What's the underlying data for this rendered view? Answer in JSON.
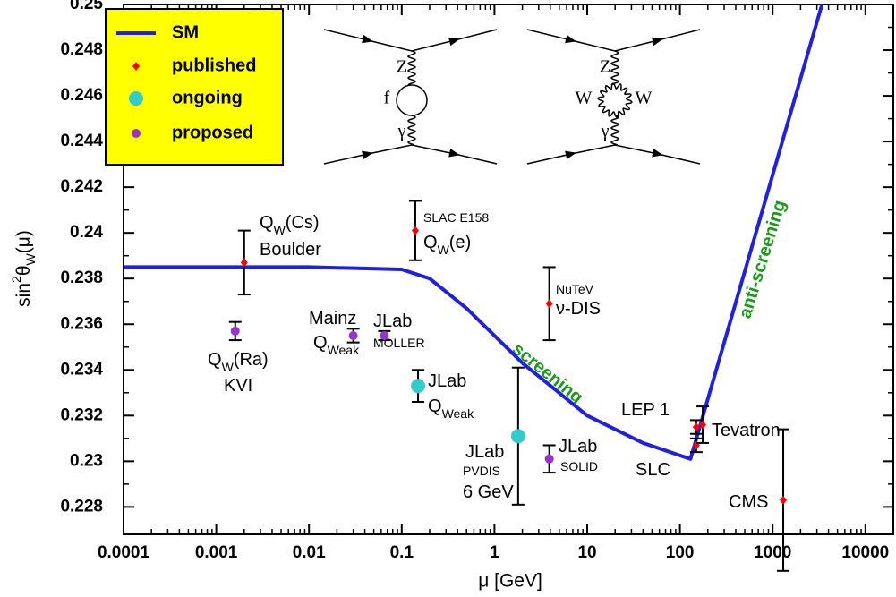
{
  "chart_data": {
    "type": "scatter",
    "xlabel": "μ [GeV]",
    "ylabel_parts": [
      "sin",
      "2",
      "θ",
      "W",
      "(μ)"
    ],
    "x_log": true,
    "xlim": [
      0.0001,
      20000
    ],
    "ylim": [
      0.2268,
      0.25
    ],
    "xticks": [
      0.0001,
      0.001,
      0.01,
      0.1,
      1,
      10,
      100,
      1000,
      10000
    ],
    "yticks": [
      0.228,
      0.23,
      0.232,
      0.234,
      0.236,
      0.238,
      0.24,
      0.242,
      0.244,
      0.246,
      0.248,
      0.25
    ],
    "legend_position": "upper left",
    "series": [
      {
        "name": "SM",
        "type": "line",
        "color": "#1f1fe6",
        "x": [
          0.0001,
          0.001,
          0.01,
          0.1,
          0.2,
          0.5,
          2,
          10,
          40,
          130,
          3400
        ],
        "values": [
          0.2385,
          0.2385,
          0.2385,
          0.2384,
          0.238,
          0.2367,
          0.2343,
          0.232,
          0.2308,
          0.2301,
          0.25
        ]
      },
      {
        "name": "published",
        "marker": "diamond",
        "color": "#ff0000",
        "x": [
          0.002,
          0.14,
          3.9,
          150,
          150,
          176,
          1300
        ],
        "values": [
          0.2387,
          0.2401,
          0.2369,
          0.2315,
          0.2307,
          0.2316,
          0.2283
        ],
        "errors": [
          0.0014,
          0.0013,
          0.0016,
          0.0003,
          0.0003,
          0.0008,
          0.0031
        ]
      },
      {
        "name": "ongoing",
        "marker": "circle",
        "color": "#33cccc",
        "x": [
          0.15,
          1.8
        ],
        "values": [
          0.2333,
          0.2311
        ],
        "errors": [
          0.0007,
          0.003
        ]
      },
      {
        "name": "proposed",
        "marker": "circle",
        "color": "#9933cc",
        "x": [
          0.0016,
          0.03,
          0.065,
          3.9
        ],
        "values": [
          0.2357,
          0.2355,
          0.2355,
          0.2301
        ],
        "errors": [
          0.0004,
          0.0003,
          0.0002,
          0.0006
        ]
      }
    ],
    "annotations": [
      {
        "text": "Q",
        "sub": "W",
        "after": "(Cs)"
      },
      {
        "text": "Boulder"
      },
      {
        "text": "SLAC E158"
      },
      {
        "text": "Q",
        "sub": "W",
        "after": "(e)"
      },
      {
        "text": "NuTeV"
      },
      {
        "text": "ν-DIS"
      },
      {
        "text": "Mainz"
      },
      {
        "text": "Q",
        "sub": "Weak"
      },
      {
        "text": "JLab"
      },
      {
        "text": "MOLLER"
      },
      {
        "text": "Q",
        "sub": "W",
        "after": "(Ra)"
      },
      {
        "text": "KVI"
      },
      {
        "text": "JLab"
      },
      {
        "text": "Q",
        "sub": "Weak"
      },
      {
        "text": "JLab"
      },
      {
        "text": "PVDIS"
      },
      {
        "text": "6 GeV"
      },
      {
        "text": "JLab"
      },
      {
        "text": "SOLID"
      },
      {
        "text": "LEP 1"
      },
      {
        "text": "SLC"
      },
      {
        "text": "Tevatron"
      },
      {
        "text": "CMS"
      },
      {
        "text": "screening"
      },
      {
        "text": "anti-screening"
      }
    ],
    "diagram_labels": [
      "Z",
      "f",
      "γ",
      "Z",
      "W",
      "W",
      "γ"
    ]
  }
}
